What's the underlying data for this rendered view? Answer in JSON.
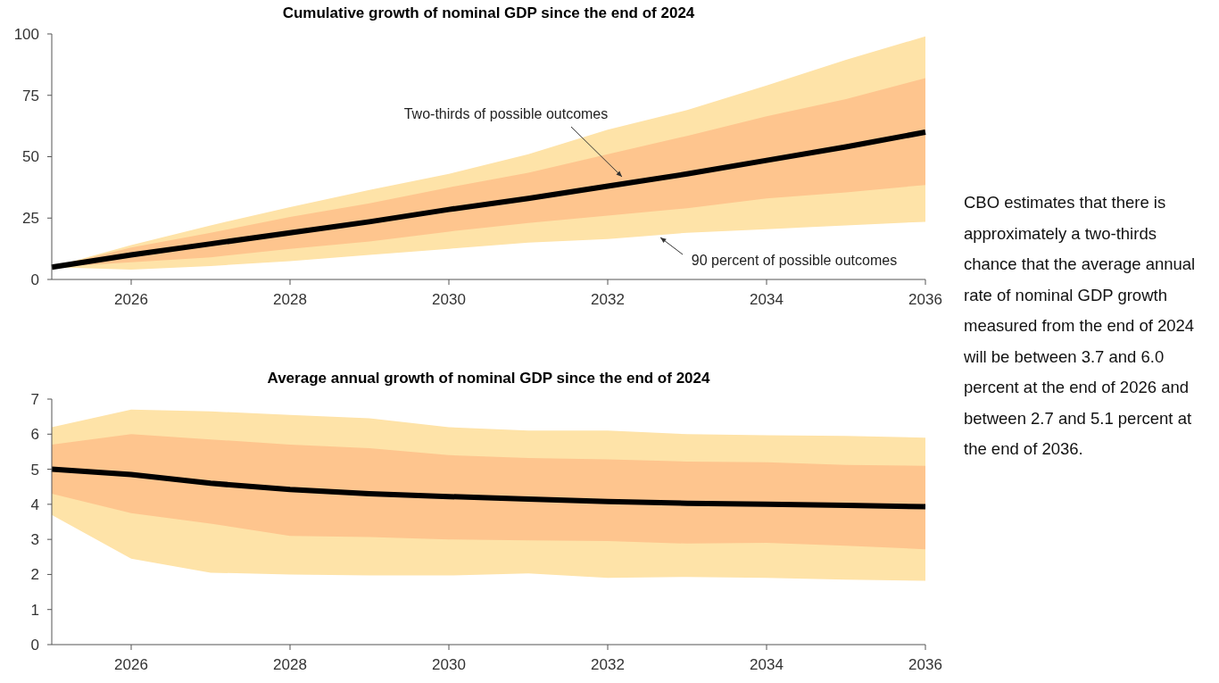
{
  "chart_data": [
    {
      "type": "line",
      "title": "Cumulative growth of nominal GDP since the end of 2024",
      "x": [
        2025,
        2026,
        2027,
        2028,
        2029,
        2030,
        2031,
        2032,
        2033,
        2034,
        2035,
        2036
      ],
      "xlim": [
        2025,
        2036
      ],
      "xticks": [
        2026,
        2028,
        2030,
        2032,
        2034,
        2036
      ],
      "ylim": [
        0,
        100
      ],
      "yticks": [
        0,
        25,
        50,
        75,
        100
      ],
      "colors": [
        "#fec58e"
      ],
      "series": [
        {
          "type": "area",
          "color": "#fee3a8",
          "values": [
            5,
            14,
            22,
            29.5,
            36.5,
            43,
            51,
            61,
            69,
            79,
            89.5,
            99
          ]
        },
        {
          "type": "area",
          "color": "#ffffff",
          "values": [
            5,
            4,
            5.5,
            7.5,
            10,
            12.5,
            15,
            16.5,
            19,
            20.5,
            22,
            23.5
          ]
        },
        {
          "type": "line",
          "color": "#000000",
          "values": [
            5,
            10,
            14.5,
            19,
            23.5,
            28.5,
            33,
            38,
            43,
            48.5,
            54,
            60
          ],
          "lower": [
            5,
            7,
            9,
            12.5,
            15.5,
            19.5,
            23,
            26,
            29,
            33,
            35.5,
            38.5
          ],
          "upper": [
            5,
            13,
            19,
            25.5,
            31,
            37.5,
            43.5,
            51,
            58.5,
            66.5,
            73.5,
            82
          ]
        }
      ],
      "annotations": [
        "Two-thirds of possible outcomes",
        "90 percent of possible outcomes"
      ]
    },
    {
      "type": "line",
      "title": "Average annual growth of nominal GDP since the end of 2024",
      "x": [
        2025,
        2026,
        2027,
        2028,
        2029,
        2030,
        2031,
        2032,
        2033,
        2034,
        2035,
        2036
      ],
      "xlim": [
        2025,
        2036
      ],
      "xticks": [
        2026,
        2028,
        2030,
        2032,
        2034,
        2036
      ],
      "ylim": [
        0,
        7
      ],
      "yticks": [
        0,
        1,
        2,
        3,
        4,
        5,
        6,
        7
      ],
      "colors": [
        "#fec58e"
      ],
      "series": [
        {
          "type": "area",
          "color": "#fee3a8",
          "values": [
            6.2,
            6.7,
            6.65,
            6.55,
            6.45,
            6.2,
            6.1,
            6.1,
            6.0,
            5.97,
            5.95,
            5.9
          ]
        },
        {
          "type": "area",
          "color": "#ffffff",
          "values": [
            3.7,
            2.45,
            2.05,
            2.0,
            1.97,
            1.97,
            2.03,
            1.9,
            1.93,
            1.9,
            1.85,
            1.82
          ]
        },
        {
          "type": "line",
          "color": "#000000",
          "values": [
            5.0,
            4.85,
            4.6,
            4.42,
            4.3,
            4.22,
            4.15,
            4.08,
            4.03,
            4.0,
            3.97,
            3.93
          ],
          "lower": [
            4.3,
            3.75,
            3.45,
            3.1,
            3.07,
            3.0,
            2.97,
            2.95,
            2.88,
            2.9,
            2.82,
            2.72
          ],
          "upper": [
            5.7,
            6.0,
            5.85,
            5.7,
            5.6,
            5.4,
            5.32,
            5.28,
            5.22,
            5.2,
            5.12,
            5.1
          ]
        }
      ]
    },
    {
      "type": "other",
      "annotations": [
        "CBO estimates that there is approximately a two-thirds chance that the average annual rate of nominal GDP growth measured from the end of 2024 will be between 3.7 and 6.0 percent at the end of 2026 and between 2.7 and 5.1 percent at the end of 2036."
      ]
    }
  ]
}
